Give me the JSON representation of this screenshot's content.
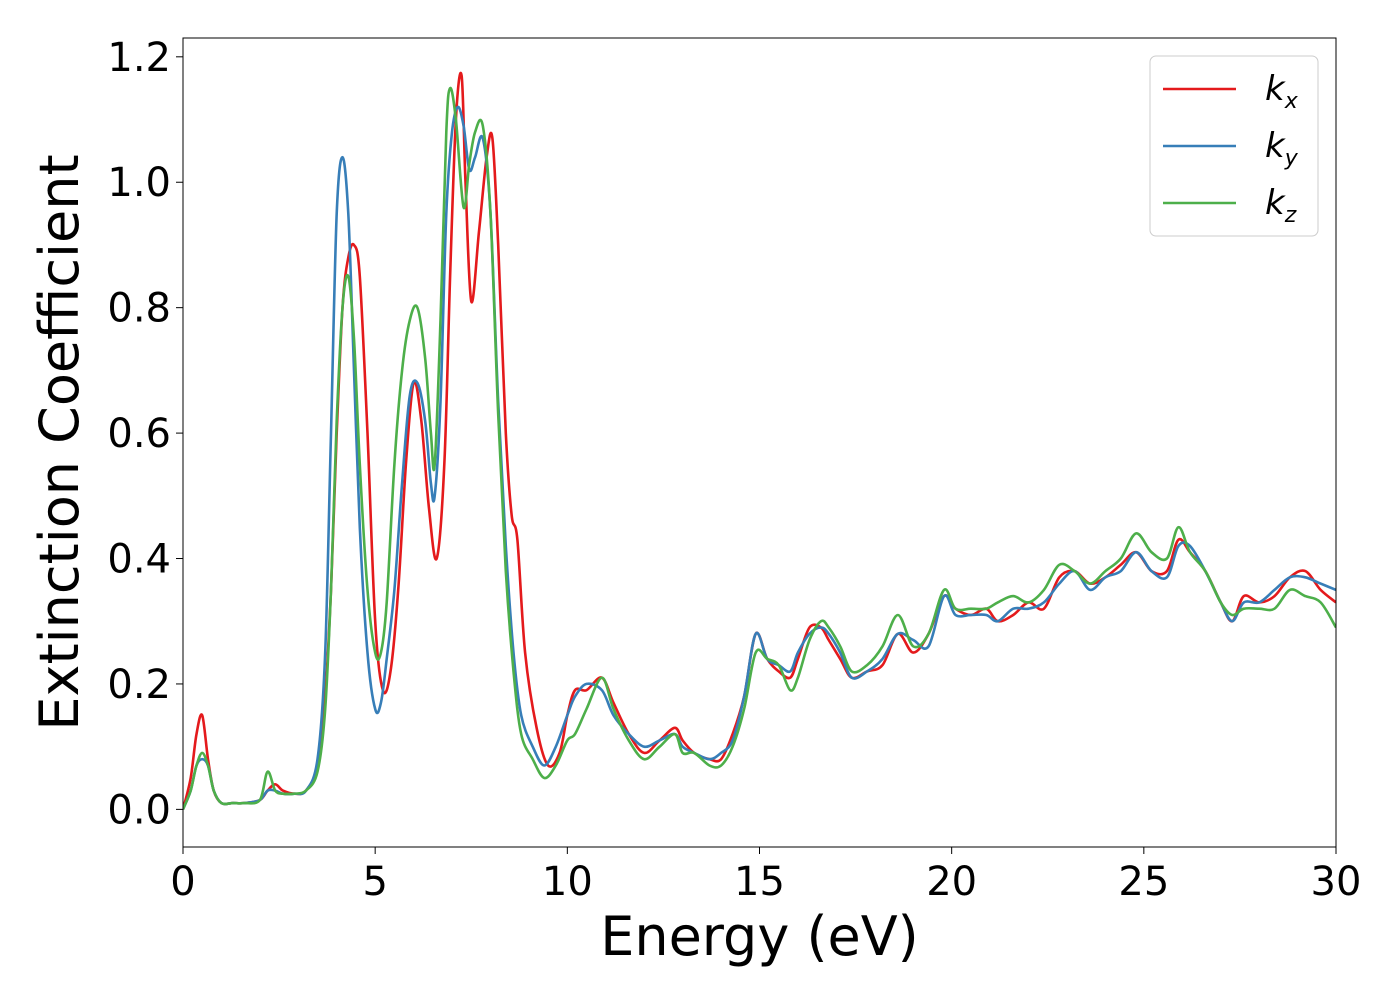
{
  "chart_data": {
    "type": "line",
    "xlabel": "Energy (eV)",
    "ylabel": "Extinction Coefficient",
    "xlim": [
      0,
      30
    ],
    "ylim": [
      -0.06,
      1.23
    ],
    "xticks": [
      0,
      5,
      10,
      15,
      20,
      25,
      30
    ],
    "xtick_labels": [
      "0",
      "5",
      "10",
      "15",
      "20",
      "25",
      "30"
    ],
    "yticks": [
      0.0,
      0.2,
      0.4,
      0.6,
      0.8,
      1.0,
      1.2
    ],
    "ytick_labels": [
      "0.0",
      "0.2",
      "0.4",
      "0.6",
      "0.8",
      "1.0",
      "1.2"
    ],
    "grid": false,
    "legend_position": "top-right",
    "series": [
      {
        "name": "k_x",
        "label_main": "k",
        "label_sub": "x",
        "color": "#e41a1c",
        "x": [
          0,
          0.2,
          0.35,
          0.5,
          0.65,
          0.8,
          1.0,
          1.3,
          1.6,
          2.0,
          2.2,
          2.4,
          2.6,
          2.9,
          3.2,
          3.5,
          3.7,
          3.85,
          4.0,
          4.15,
          4.3,
          4.45,
          4.6,
          4.8,
          5.0,
          5.2,
          5.4,
          5.6,
          5.8,
          6.0,
          6.2,
          6.4,
          6.6,
          6.8,
          6.95,
          7.1,
          7.25,
          7.35,
          7.5,
          7.7,
          7.9,
          8.05,
          8.2,
          8.4,
          8.55,
          8.7,
          8.9,
          9.2,
          9.5,
          9.8,
          10.0,
          10.2,
          10.5,
          10.9,
          11.2,
          11.6,
          12.0,
          12.4,
          12.8,
          13.0,
          13.3,
          13.7,
          14.0,
          14.3,
          14.6,
          14.9,
          15.2,
          15.5,
          15.8,
          16.0,
          16.3,
          16.6,
          16.8,
          17.1,
          17.4,
          17.8,
          18.2,
          18.6,
          19.0,
          19.4,
          19.8,
          20.1,
          20.5,
          20.9,
          21.2,
          21.6,
          22.0,
          22.4,
          22.8,
          23.2,
          23.6,
          24.0,
          24.4,
          24.8,
          25.2,
          25.6,
          25.9,
          26.2,
          26.6,
          27.0,
          27.3,
          27.6,
          28.0,
          28.4,
          28.8,
          29.2,
          29.6,
          30.0
        ],
        "y": [
          0.0,
          0.05,
          0.12,
          0.15,
          0.08,
          0.03,
          0.01,
          0.01,
          0.01,
          0.015,
          0.03,
          0.04,
          0.03,
          0.025,
          0.03,
          0.07,
          0.18,
          0.35,
          0.6,
          0.8,
          0.88,
          0.9,
          0.85,
          0.6,
          0.3,
          0.19,
          0.22,
          0.35,
          0.55,
          0.68,
          0.62,
          0.48,
          0.4,
          0.55,
          0.85,
          1.1,
          1.17,
          1.0,
          0.81,
          0.92,
          1.04,
          1.07,
          0.9,
          0.6,
          0.47,
          0.43,
          0.25,
          0.13,
          0.07,
          0.09,
          0.15,
          0.19,
          0.19,
          0.21,
          0.17,
          0.12,
          0.09,
          0.11,
          0.13,
          0.11,
          0.09,
          0.08,
          0.08,
          0.12,
          0.18,
          0.28,
          0.24,
          0.22,
          0.21,
          0.24,
          0.29,
          0.29,
          0.27,
          0.24,
          0.21,
          0.22,
          0.23,
          0.28,
          0.25,
          0.28,
          0.34,
          0.32,
          0.31,
          0.32,
          0.3,
          0.31,
          0.33,
          0.32,
          0.37,
          0.38,
          0.36,
          0.37,
          0.39,
          0.41,
          0.38,
          0.38,
          0.43,
          0.41,
          0.38,
          0.33,
          0.3,
          0.34,
          0.33,
          0.34,
          0.37,
          0.38,
          0.35,
          0.33
        ]
      },
      {
        "name": "k_y",
        "label_main": "k",
        "label_sub": "y",
        "color": "#377eb8",
        "x": [
          0,
          0.2,
          0.35,
          0.5,
          0.65,
          0.8,
          1.0,
          1.3,
          1.6,
          2.0,
          2.2,
          2.4,
          2.6,
          2.9,
          3.2,
          3.5,
          3.7,
          3.85,
          4.0,
          4.15,
          4.3,
          4.45,
          4.6,
          4.8,
          5.0,
          5.15,
          5.3,
          5.5,
          5.7,
          5.9,
          6.1,
          6.3,
          6.45,
          6.55,
          6.7,
          6.85,
          7.0,
          7.15,
          7.3,
          7.45,
          7.6,
          7.8,
          8.0,
          8.2,
          8.4,
          8.6,
          8.8,
          9.1,
          9.4,
          9.7,
          10.0,
          10.2,
          10.5,
          10.9,
          11.2,
          11.6,
          12.0,
          12.4,
          12.8,
          13.0,
          13.3,
          13.7,
          14.0,
          14.3,
          14.6,
          14.9,
          15.2,
          15.5,
          15.8,
          16.0,
          16.3,
          16.6,
          16.8,
          17.1,
          17.4,
          17.8,
          18.2,
          18.6,
          19.0,
          19.4,
          19.8,
          20.1,
          20.5,
          20.9,
          21.2,
          21.6,
          22.0,
          22.4,
          22.8,
          23.2,
          23.6,
          24.0,
          24.4,
          24.8,
          25.2,
          25.6,
          25.9,
          26.2,
          26.6,
          27.0,
          27.3,
          27.6,
          28.0,
          28.4,
          28.8,
          29.2,
          29.6,
          30.0
        ],
        "y": [
          0.0,
          0.03,
          0.07,
          0.08,
          0.07,
          0.03,
          0.01,
          0.01,
          0.01,
          0.015,
          0.03,
          0.03,
          0.025,
          0.025,
          0.03,
          0.08,
          0.25,
          0.6,
          0.95,
          1.04,
          0.95,
          0.7,
          0.45,
          0.25,
          0.16,
          0.17,
          0.24,
          0.35,
          0.52,
          0.66,
          0.68,
          0.62,
          0.52,
          0.5,
          0.65,
          0.95,
          1.08,
          1.12,
          1.09,
          1.02,
          1.04,
          1.07,
          0.95,
          0.65,
          0.42,
          0.25,
          0.15,
          0.1,
          0.07,
          0.1,
          0.15,
          0.18,
          0.2,
          0.19,
          0.15,
          0.12,
          0.1,
          0.11,
          0.12,
          0.1,
          0.09,
          0.08,
          0.09,
          0.11,
          0.18,
          0.28,
          0.24,
          0.23,
          0.22,
          0.25,
          0.28,
          0.29,
          0.28,
          0.25,
          0.21,
          0.22,
          0.24,
          0.28,
          0.27,
          0.26,
          0.34,
          0.31,
          0.31,
          0.31,
          0.3,
          0.32,
          0.32,
          0.33,
          0.36,
          0.38,
          0.35,
          0.37,
          0.38,
          0.41,
          0.38,
          0.37,
          0.42,
          0.42,
          0.38,
          0.33,
          0.3,
          0.33,
          0.33,
          0.35,
          0.37,
          0.37,
          0.36,
          0.35
        ]
      },
      {
        "name": "k_z",
        "label_main": "k",
        "label_sub": "z",
        "color": "#4daf4a",
        "x": [
          0,
          0.2,
          0.35,
          0.5,
          0.65,
          0.8,
          1.0,
          1.3,
          1.6,
          2.0,
          2.2,
          2.4,
          2.6,
          2.9,
          3.2,
          3.5,
          3.7,
          3.85,
          4.0,
          4.15,
          4.3,
          4.45,
          4.6,
          4.8,
          5.0,
          5.15,
          5.3,
          5.5,
          5.7,
          5.9,
          6.1,
          6.3,
          6.45,
          6.55,
          6.7,
          6.85,
          6.95,
          7.1,
          7.3,
          7.45,
          7.6,
          7.8,
          8.0,
          8.2,
          8.4,
          8.6,
          8.8,
          9.1,
          9.4,
          9.7,
          10.0,
          10.2,
          10.5,
          10.9,
          11.2,
          11.6,
          12.0,
          12.4,
          12.8,
          13.0,
          13.3,
          13.7,
          14.0,
          14.3,
          14.6,
          14.9,
          15.2,
          15.5,
          15.8,
          16.0,
          16.3,
          16.6,
          16.8,
          17.1,
          17.4,
          17.8,
          18.2,
          18.6,
          19.0,
          19.4,
          19.8,
          20.1,
          20.5,
          20.9,
          21.2,
          21.6,
          22.0,
          22.4,
          22.8,
          23.2,
          23.6,
          24.0,
          24.4,
          24.8,
          25.2,
          25.6,
          25.9,
          26.2,
          26.6,
          27.0,
          27.3,
          27.6,
          28.0,
          28.4,
          28.8,
          29.2,
          29.6,
          30.0
        ],
        "y": [
          0.0,
          0.03,
          0.07,
          0.09,
          0.07,
          0.03,
          0.01,
          0.01,
          0.01,
          0.015,
          0.06,
          0.03,
          0.025,
          0.025,
          0.03,
          0.06,
          0.16,
          0.35,
          0.62,
          0.8,
          0.85,
          0.75,
          0.55,
          0.35,
          0.25,
          0.25,
          0.33,
          0.55,
          0.7,
          0.78,
          0.8,
          0.72,
          0.6,
          0.55,
          0.78,
          1.08,
          1.15,
          1.1,
          0.96,
          1.03,
          1.08,
          1.09,
          0.95,
          0.63,
          0.38,
          0.22,
          0.12,
          0.08,
          0.05,
          0.07,
          0.11,
          0.12,
          0.16,
          0.21,
          0.16,
          0.11,
          0.08,
          0.1,
          0.12,
          0.09,
          0.09,
          0.07,
          0.07,
          0.1,
          0.16,
          0.25,
          0.24,
          0.23,
          0.19,
          0.21,
          0.27,
          0.3,
          0.29,
          0.26,
          0.22,
          0.23,
          0.26,
          0.31,
          0.26,
          0.28,
          0.35,
          0.32,
          0.32,
          0.32,
          0.33,
          0.34,
          0.33,
          0.35,
          0.39,
          0.38,
          0.36,
          0.38,
          0.4,
          0.44,
          0.41,
          0.4,
          0.45,
          0.41,
          0.38,
          0.33,
          0.31,
          0.32,
          0.32,
          0.32,
          0.35,
          0.34,
          0.33,
          0.29
        ]
      }
    ]
  }
}
